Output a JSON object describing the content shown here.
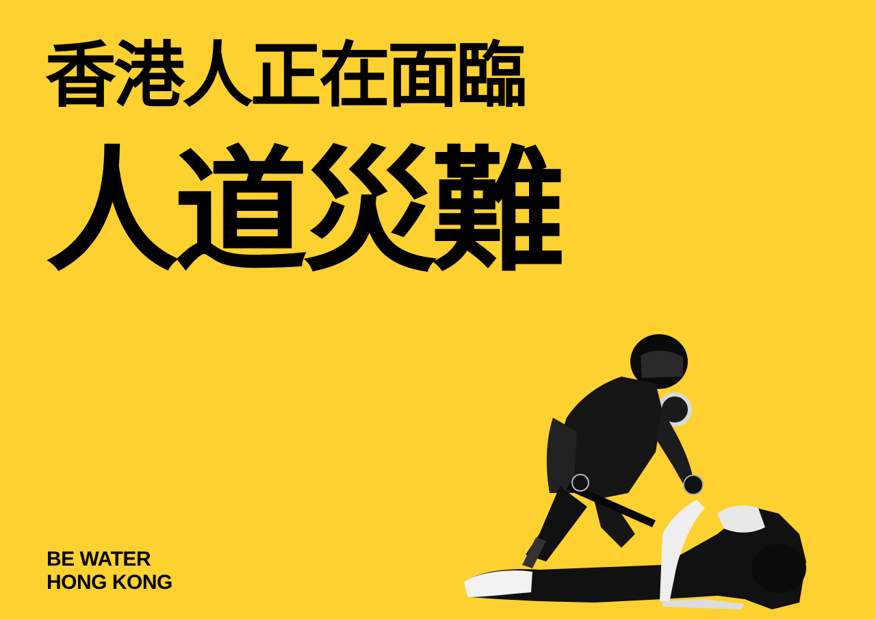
{
  "poster": {
    "headline_line1": "香港人正在面臨",
    "headline_line2": "人道災難",
    "slogan_line1": "BE WATER",
    "slogan_line2": "HONG KONG"
  },
  "colors": {
    "background": "#FDD12F",
    "text": "#000000"
  }
}
